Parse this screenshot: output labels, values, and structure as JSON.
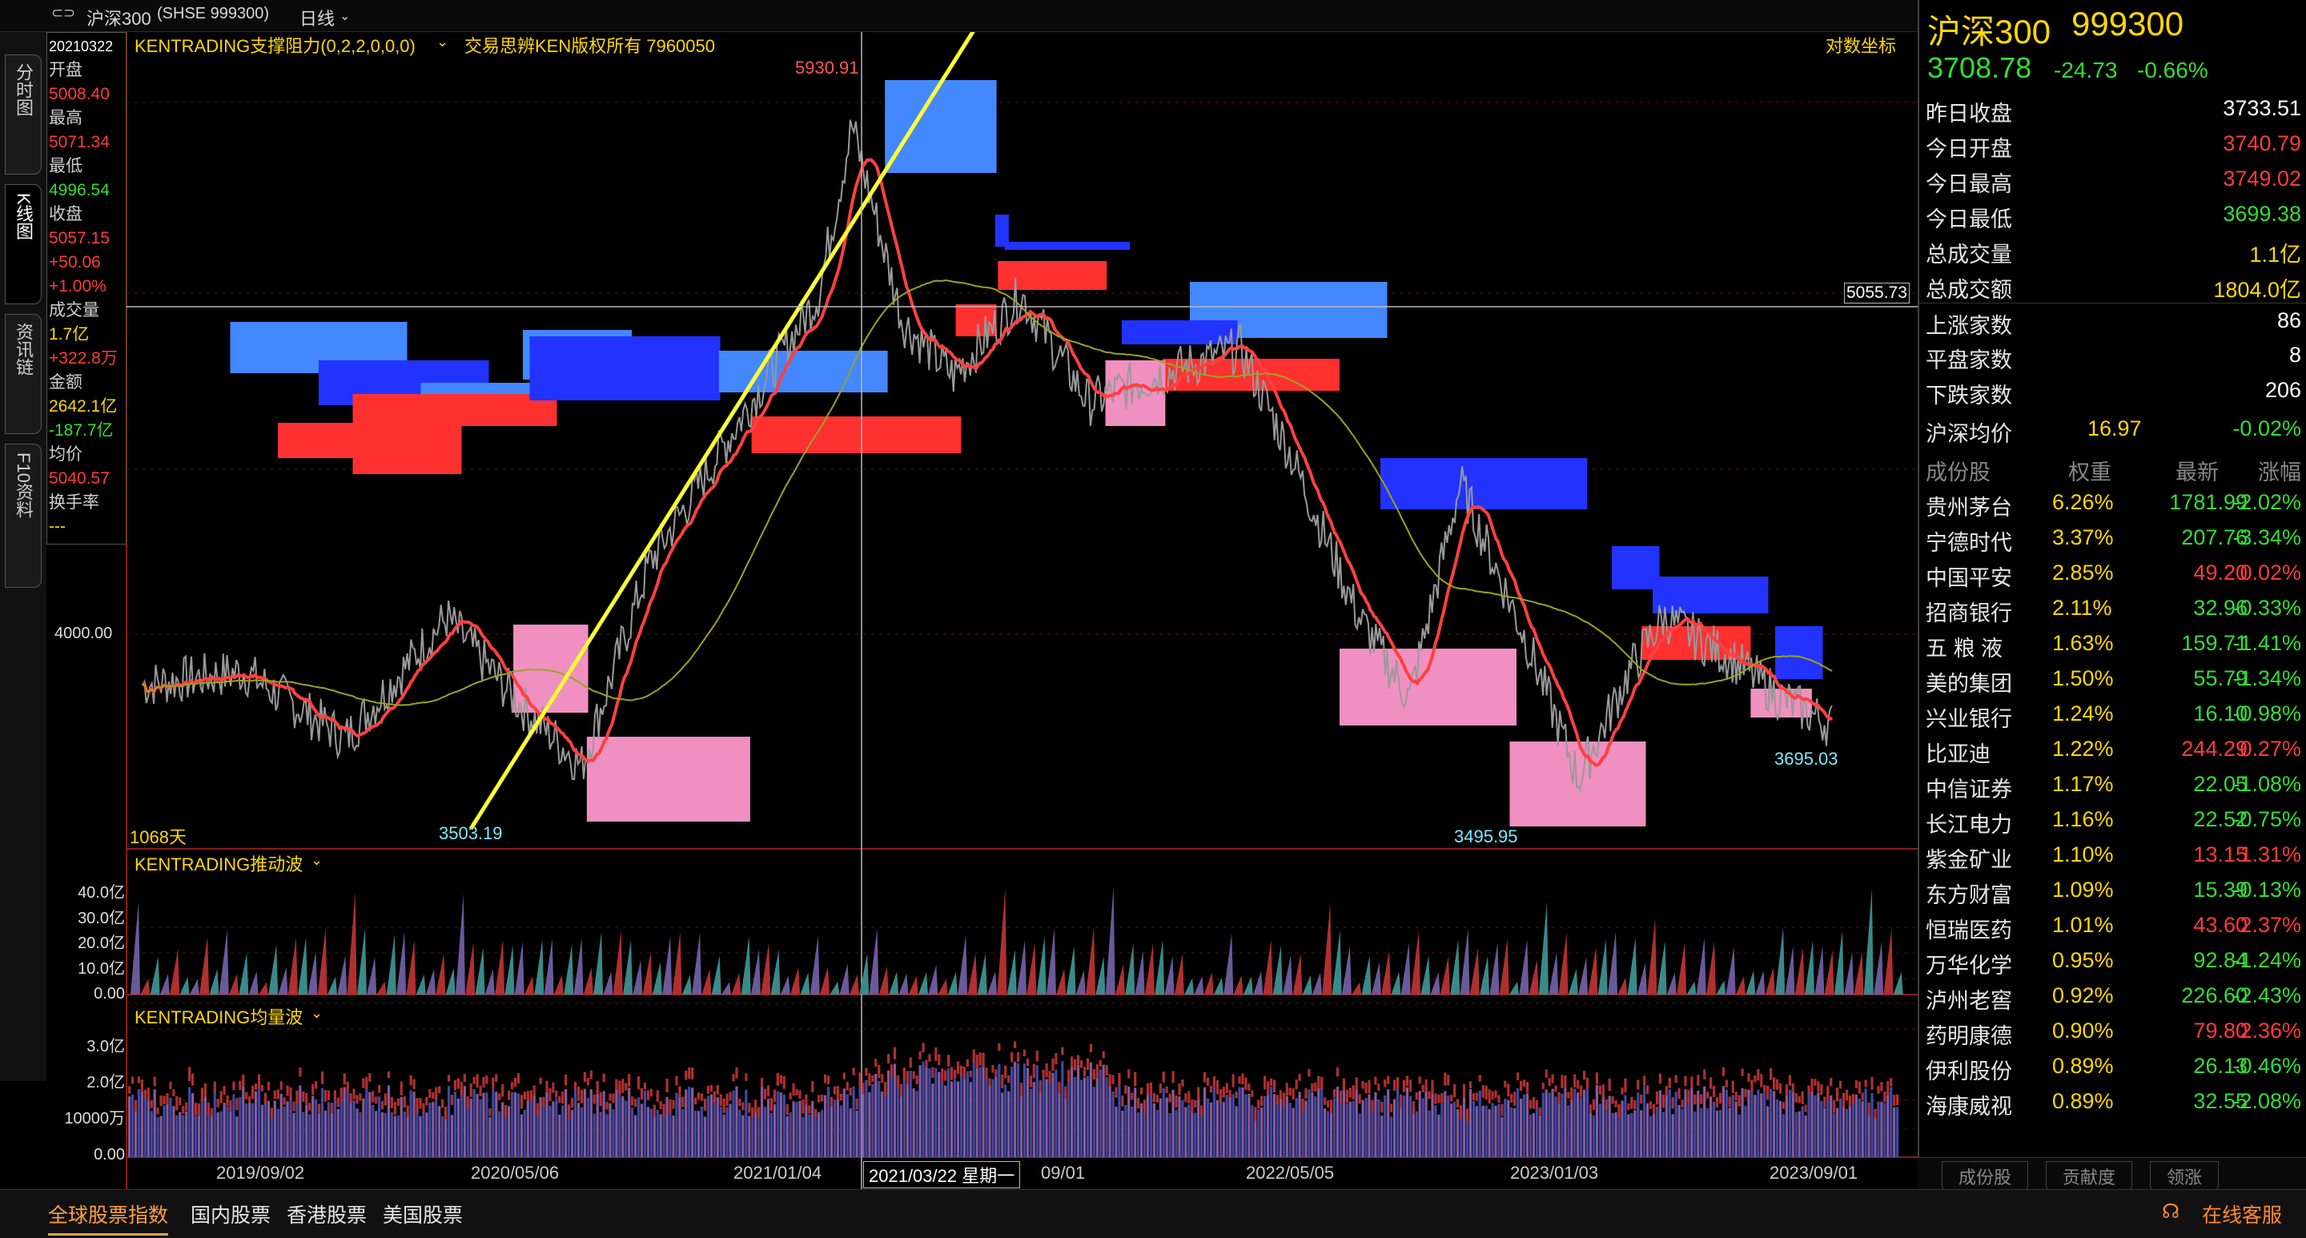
{
  "topbar": {
    "index_name": "沪深300",
    "code": "(SHSE 999300)",
    "period": "日线"
  },
  "leftnav": [
    {
      "label": "分时图"
    },
    {
      "label": "K线图"
    },
    {
      "label": "资讯链"
    },
    {
      "label": "F10资料"
    }
  ],
  "indicator_main": {
    "title": "KENTRADING支撑阻力(0,2,2,0,0,0)",
    "copyright": "交易思辨KEN版权所有 7960050",
    "log_toggle": "对数坐标"
  },
  "info": {
    "date": "20210322",
    "open_label": "开盘",
    "open": "5008.40",
    "high_label": "最高",
    "high": "5071.34",
    "low_label": "最低",
    "low": "4996.54",
    "close_label": "收盘",
    "close": "5057.15",
    "change": "+50.06",
    "change_pct": "+1.00%",
    "vol_label": "成交量",
    "vol": "1.7亿",
    "vol_change": "+322.8万",
    "amount_label": "金额",
    "amount": "2642.1亿",
    "amount_change": "-187.7亿",
    "avg_label": "均价",
    "avg": "5040.57",
    "turnover_label": "换手率",
    "turnover": "---"
  },
  "price_axis": {
    "label_4000": "4000.00",
    "crosshair": "5055.73"
  },
  "annotations": {
    "peak": "5930.91",
    "low1": "3503.19",
    "low2": "3495.95",
    "last": "3695.03",
    "days": "1068天"
  },
  "indicator_wave": {
    "title": "KENTRADING推动波",
    "ticks": [
      "40.0亿",
      "30.0亿",
      "20.0亿",
      "10.0亿",
      "0.00"
    ]
  },
  "indicator_vol": {
    "title": "KENTRADING均量波",
    "ticks": [
      "3.0亿",
      "2.0亿",
      "10000万",
      "0.00"
    ]
  },
  "time_axis": [
    "2019/09/02",
    "2020/05/06",
    "2021/01/04",
    "09/01",
    "2022/05/05",
    "2023/01/03",
    "2023/09/01"
  ],
  "crosshair_date": "2021/03/22 星期一",
  "quote": {
    "name": "沪深300",
    "code": "999300",
    "price": "3708.78",
    "change": "-24.73",
    "change_pct": "-0.66%",
    "rows": [
      {
        "label": "昨日收盘",
        "value": "3733.51",
        "color": "#ffffff"
      },
      {
        "label": "今日开盘",
        "value": "3740.79",
        "color": "#ff3b3b"
      },
      {
        "label": "今日最高",
        "value": "3749.02",
        "color": "#ff3b3b"
      },
      {
        "label": "今日最低",
        "value": "3699.38",
        "color": "#33dd33"
      },
      {
        "label": "总成交量",
        "value": "1.1亿",
        "color": "#ffd800"
      },
      {
        "label": "总成交额",
        "value": "1804.0亿",
        "color": "#ffd800"
      },
      {
        "label": "上涨家数",
        "value": "86",
        "color": "#ffffff"
      },
      {
        "label": "平盘家数",
        "value": "8",
        "color": "#ffffff"
      },
      {
        "label": "下跌家数",
        "value": "206",
        "color": "#ffffff"
      }
    ],
    "avg_label": "沪深均价",
    "avg_value": "16.97",
    "avg_pct": "-0.02%"
  },
  "constituents": {
    "headers": [
      "成份股",
      "权重",
      "最新",
      "涨幅"
    ],
    "rows": [
      [
        "贵州茅台",
        "6.26%",
        "1781.99",
        "-2.02%"
      ],
      [
        "宁德时代",
        "3.37%",
        "207.76",
        "-3.34%"
      ],
      [
        "中国平安",
        "2.85%",
        "49.20",
        "0.02%"
      ],
      [
        "招商银行",
        "2.11%",
        "32.96",
        "-0.33%"
      ],
      [
        "五 粮 液",
        "1.63%",
        "159.71",
        "-1.41%"
      ],
      [
        "美的集团",
        "1.50%",
        "55.79",
        "-1.34%"
      ],
      [
        "兴业银行",
        "1.24%",
        "16.10",
        "-0.98%"
      ],
      [
        "比亚迪",
        "1.22%",
        "244.29",
        "0.27%"
      ],
      [
        "中信证券",
        "1.17%",
        "22.05",
        "-1.08%"
      ],
      [
        "长江电力",
        "1.16%",
        "22.52",
        "-0.75%"
      ],
      [
        "紫金矿业",
        "1.10%",
        "13.15",
        "1.31%"
      ],
      [
        "东方财富",
        "1.09%",
        "15.39",
        "-0.13%"
      ],
      [
        "恒瑞医药",
        "1.01%",
        "43.60",
        "2.37%"
      ],
      [
        "万华化学",
        "0.95%",
        "92.84",
        "-1.24%"
      ],
      [
        "泸州老窖",
        "0.92%",
        "226.60",
        "-2.43%"
      ],
      [
        "药明康德",
        "0.90%",
        "79.80",
        "2.36%"
      ],
      [
        "伊利股份",
        "0.89%",
        "26.13",
        "-0.46%"
      ],
      [
        "海康威视",
        "0.89%",
        "32.55",
        "-2.08%"
      ]
    ]
  },
  "right_tabs": [
    "成份股",
    "贡献度",
    "领涨"
  ],
  "bottom_tabs": [
    "全球股票指数",
    "国内股票",
    "香港股票",
    "美国股票"
  ],
  "service": "在线客服",
  "chart_data": {
    "type": "line",
    "title": "沪深300",
    "x": [
      "2019/09/02",
      "2020/05/06",
      "2021/01/04",
      "2021/09/01",
      "2022/05/05",
      "2023/01/03",
      "2023/09/01"
    ],
    "series": [
      {
        "values": [
          3850,
          3600,
          5100,
          4900,
          4000,
          3900,
          3700
        ]
      }
    ],
    "points": [
      {
        "label": "5930.91",
        "value": 5930.91
      },
      {
        "label": "3503.19",
        "value": 3503.19
      },
      {
        "label": "3495.95",
        "value": 3495.95
      },
      {
        "label": "3695.03",
        "value": 3695.03
      }
    ]
  },
  "colors": {
    "up": "#ff3b3b",
    "down": "#33dd33",
    "accent": "#ffd800"
  }
}
